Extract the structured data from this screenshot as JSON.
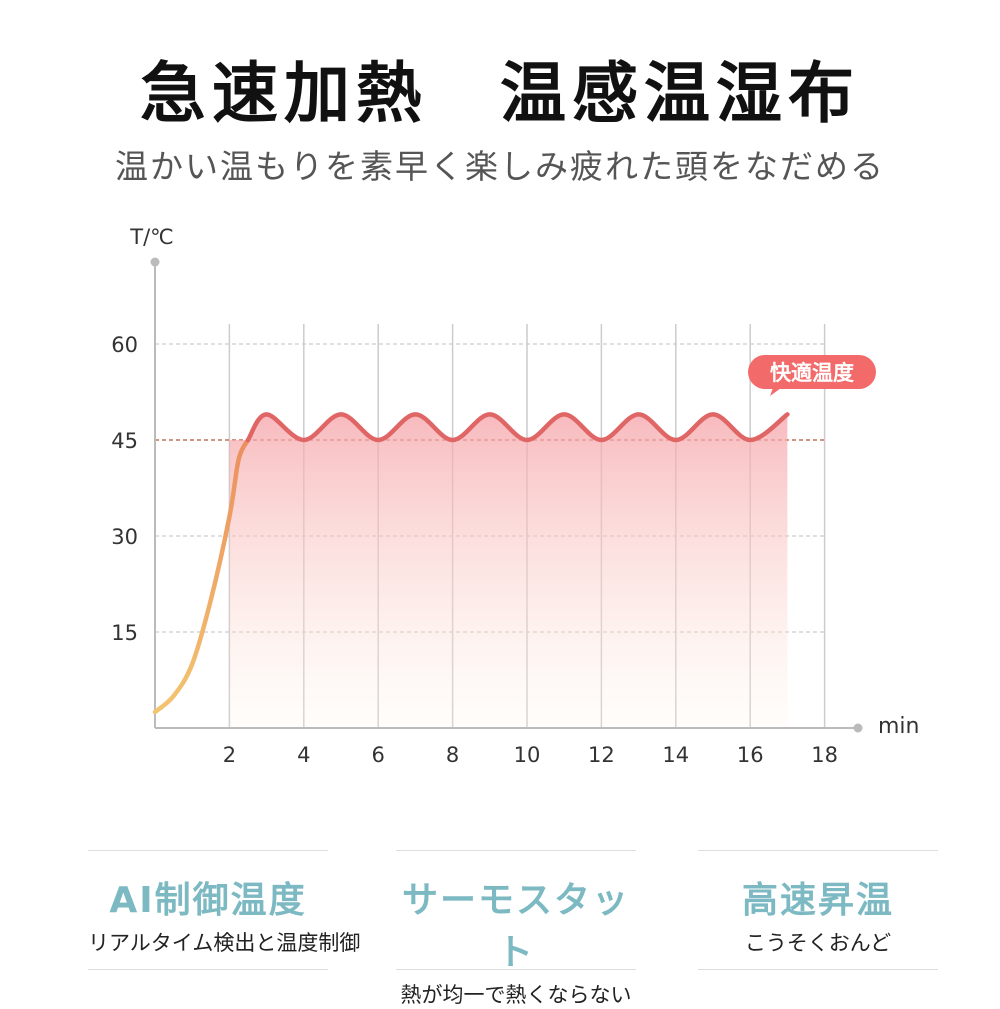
{
  "header": {
    "title": "急速加熱　温感温湿布",
    "subtitle": "温かい温もりを素早く楽しみ疲れた頭をなだめる"
  },
  "chart_data": {
    "type": "line",
    "ylabel": "T/℃",
    "xlabel": "min",
    "x_ticks": [
      2,
      4,
      6,
      8,
      10,
      12,
      14,
      16,
      18
    ],
    "y_ticks": [
      15,
      30,
      45,
      60
    ],
    "xlim": [
      0,
      18
    ],
    "ylim": [
      0,
      60
    ],
    "reference_line": 45,
    "annotation": "快適温度",
    "series": [
      {
        "x": [
          0,
          0.5,
          1,
          1.5,
          2,
          2.25,
          2.5,
          3,
          4,
          5,
          6,
          7,
          8,
          9,
          10,
          11,
          12,
          13,
          14,
          15,
          16,
          17
        ],
        "y": [
          2.5,
          5,
          10,
          20,
          33,
          42,
          45,
          49,
          45,
          49,
          45,
          49,
          45,
          49,
          45,
          49,
          45,
          49,
          45,
          49,
          45,
          49
        ]
      }
    ],
    "colors": {
      "rise": "#f0b85a",
      "plateau": "#e06565",
      "annotation_bg": "#f26a6a",
      "axis": "#bbbbbb",
      "grid": "#cccccc",
      "reference": "#b9543e"
    }
  },
  "features": [
    {
      "title": "AI制御温度",
      "desc": "リアルタイム検出と温度制御"
    },
    {
      "title": "サーモスタット",
      "desc": "熱が均一で熱くならない"
    },
    {
      "title": "高速昇温",
      "desc": "こうそくおんど"
    }
  ]
}
